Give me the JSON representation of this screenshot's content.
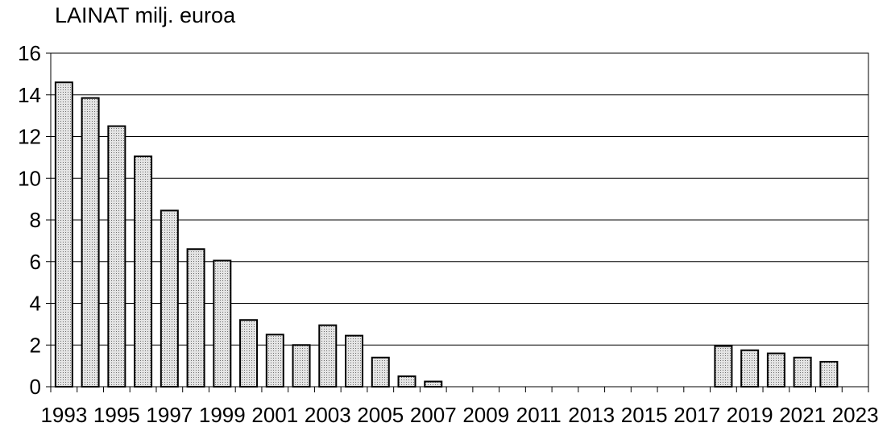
{
  "chart_data": {
    "type": "bar",
    "title": "LAINAT milj. euroa",
    "xlabel": "",
    "ylabel": "",
    "ylim": [
      0,
      16
    ],
    "yticks": [
      "0",
      "2",
      "4",
      "6",
      "8",
      "10",
      "12",
      "14",
      "16"
    ],
    "grid": true,
    "categories": [
      1993,
      1994,
      1995,
      1996,
      1997,
      1998,
      1999,
      2000,
      2001,
      2002,
      2003,
      2004,
      2005,
      2006,
      2007,
      2008,
      2009,
      2010,
      2011,
      2012,
      2013,
      2014,
      2015,
      2016,
      2017,
      2018,
      2019,
      2020,
      2021,
      2022,
      2023
    ],
    "xtick_labels": [
      "1993",
      "1995",
      "1997",
      "1999",
      "2001",
      "2003",
      "2005",
      "2007",
      "2009",
      "2011",
      "2013",
      "2015",
      "2017",
      "2019",
      "2021",
      "2023"
    ],
    "values": [
      14.6,
      13.85,
      12.5,
      11.05,
      8.45,
      6.6,
      6.05,
      3.2,
      2.5,
      2.0,
      2.95,
      2.45,
      1.4,
      0.5,
      0.25,
      0,
      0,
      0,
      0,
      0,
      0,
      0,
      0,
      0,
      0,
      1.95,
      1.75,
      1.6,
      1.4,
      1.2,
      0
    ],
    "colors": {
      "bar_fill": "#d3d3d3",
      "bar_stroke": "#000000",
      "grid": "#000000"
    }
  }
}
